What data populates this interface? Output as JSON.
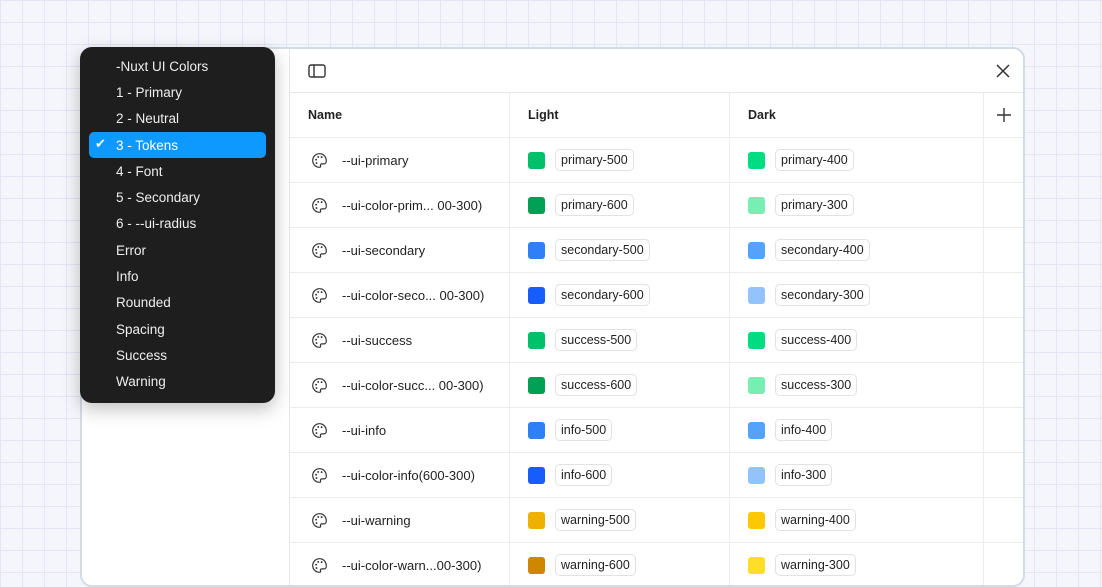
{
  "header": {
    "columns": [
      "Name",
      "Light",
      "Dark"
    ]
  },
  "rows": [
    {
      "name": "--ui-primary",
      "light": {
        "label": "primary-500",
        "color": "#00c16a"
      },
      "dark": {
        "label": "primary-400",
        "color": "#00dc82"
      }
    },
    {
      "name": "--ui-color-prim... 00-300)",
      "light": {
        "label": "primary-600",
        "color": "#00a155"
      },
      "dark": {
        "label": "primary-300",
        "color": "#78efb2"
      }
    },
    {
      "name": "--ui-secondary",
      "light": {
        "label": "secondary-500",
        "color": "#2f80f7"
      },
      "dark": {
        "label": "secondary-400",
        "color": "#55a2fb"
      }
    },
    {
      "name": "--ui-color-seco... 00-300)",
      "light": {
        "label": "secondary-600",
        "color": "#165dfb"
      },
      "dark": {
        "label": "secondary-300",
        "color": "#92c3fd"
      }
    },
    {
      "name": "--ui-success",
      "light": {
        "label": "success-500",
        "color": "#00c16a"
      },
      "dark": {
        "label": "success-400",
        "color": "#00dc82"
      }
    },
    {
      "name": "--ui-color-succ... 00-300)",
      "light": {
        "label": "success-600",
        "color": "#00a155"
      },
      "dark": {
        "label": "success-300",
        "color": "#78efb2"
      }
    },
    {
      "name": "--ui-info",
      "light": {
        "label": "info-500",
        "color": "#2f80f7"
      },
      "dark": {
        "label": "info-400",
        "color": "#55a2fb"
      }
    },
    {
      "name": "--ui-color-info(600-300)",
      "light": {
        "label": "info-600",
        "color": "#165dfb"
      },
      "dark": {
        "label": "info-300",
        "color": "#92c3fd"
      }
    },
    {
      "name": "--ui-warning",
      "light": {
        "label": "warning-500",
        "color": "#efb100"
      },
      "dark": {
        "label": "warning-400",
        "color": "#fcc800"
      }
    },
    {
      "name": "--ui-color-warn...00-300)",
      "light": {
        "label": "warning-600",
        "color": "#d08700"
      },
      "dark": {
        "label": "warning-300",
        "color": "#fede28"
      }
    }
  ],
  "menu": {
    "selected_index": 3,
    "accent": "#0d99ff",
    "items": [
      "-Nuxt UI Colors",
      "1 - Primary",
      "2 - Neutral",
      "3 - Tokens",
      "4 - Font",
      "5 - Secondary",
      "6 - --ui-radius",
      "Error",
      "Info",
      "Rounded",
      "Spacing",
      "Success",
      "Warning"
    ]
  }
}
